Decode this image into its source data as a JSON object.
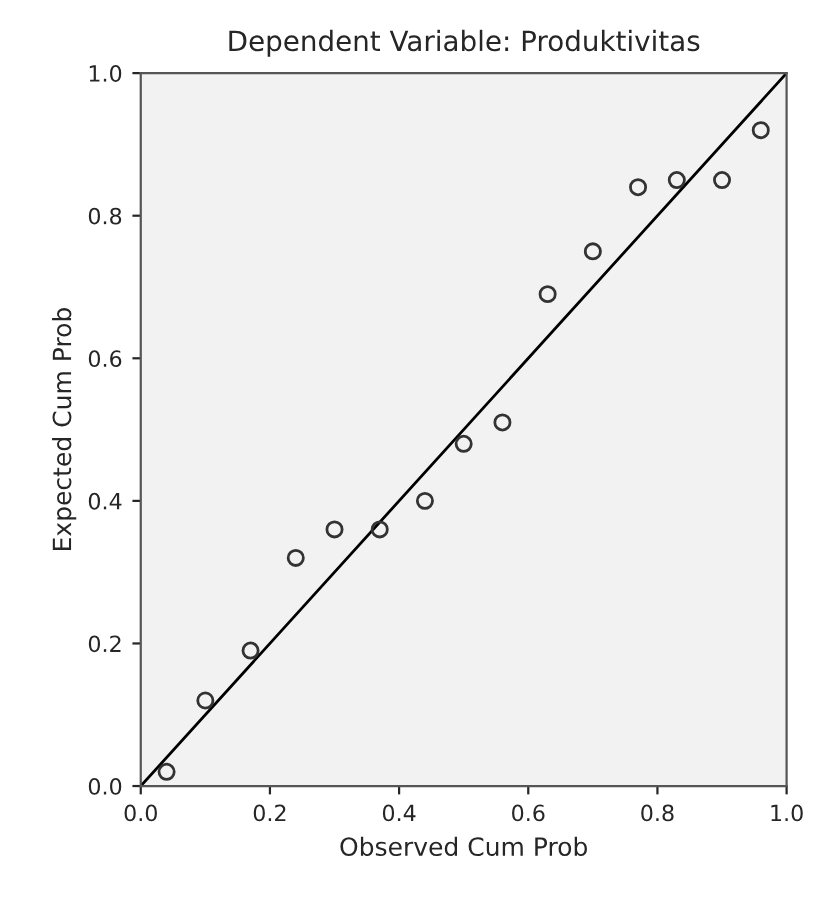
{
  "chart_data": {
    "type": "scatter",
    "title": "Dependent Variable: Produktivitas",
    "xlabel": "Observed Cum Prob",
    "ylabel": "Expected Cum Prob",
    "xlim": [
      0,
      1
    ],
    "ylim": [
      0,
      1
    ],
    "xticks": [
      {
        "value": 0,
        "label": "0.0"
      },
      0.2,
      0.4,
      0.6,
      0.8,
      {
        "value": 1,
        "label": "1.0"
      }
    ],
    "yticks": [
      {
        "value": 0,
        "label": "0.0"
      },
      0.2,
      0.4,
      0.6,
      0.8,
      {
        "value": 1,
        "label": "1.0"
      }
    ],
    "grid": false,
    "series": [
      {
        "type": "scatter",
        "marker": "circle",
        "color": "#333333",
        "x": [
          0.04,
          0.1,
          0.17,
          0.24,
          0.3,
          0.37,
          0.44,
          0.5,
          0.56,
          0.63,
          0.7,
          0.77,
          0.83,
          0.9,
          0.96
        ],
        "values": [
          0.02,
          0.12,
          0.19,
          0.32,
          0.36,
          0.36,
          0.4,
          0.48,
          0.51,
          0.69,
          0.75,
          0.84,
          0.85,
          0.85,
          0.92
        ]
      },
      {
        "type": "line",
        "color": "#000000",
        "line_style": "solid",
        "x": [
          0,
          1
        ],
        "values": [
          0,
          1
        ]
      }
    ]
  }
}
